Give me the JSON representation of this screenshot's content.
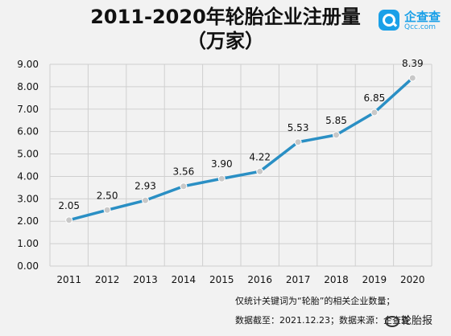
{
  "header": {
    "title_line1": "2011-2020年轮胎企业注册量",
    "title_line2": "（万家）"
  },
  "logo": {
    "name": "企查查",
    "sub": "Qcc.com"
  },
  "notes": {
    "line1": "仅统计关键词为“轮胎”的相关企业数量；",
    "line2": "数据截至：2021.12.23；数据来源：企查查"
  },
  "watermark": "轮胎报",
  "colors": {
    "line": "#2a8fc4",
    "marker": "#c8c8c8",
    "grid": "#cfcfcf",
    "background": "#f2f2f2"
  },
  "chart_data": {
    "type": "line",
    "title": "2011-2020年轮胎企业注册量（万家）",
    "categories": [
      "2011",
      "2012",
      "2013",
      "2014",
      "2015",
      "2016",
      "2017",
      "2018",
      "2019",
      "2020"
    ],
    "values": [
      2.05,
      2.5,
      2.93,
      3.56,
      3.9,
      4.22,
      5.53,
      5.85,
      6.85,
      8.39
    ],
    "data_labels": [
      "2.05",
      "2.50",
      "2.93",
      "3.56",
      "3.90",
      "4.22",
      "5.53",
      "5.85",
      "6.85",
      "8.39"
    ],
    "yticks": [
      "0.00",
      "1.00",
      "2.00",
      "3.00",
      "4.00",
      "5.00",
      "6.00",
      "7.00",
      "8.00",
      "9.00"
    ],
    "ylim": [
      0,
      9
    ],
    "grid": true,
    "legend": "none"
  }
}
